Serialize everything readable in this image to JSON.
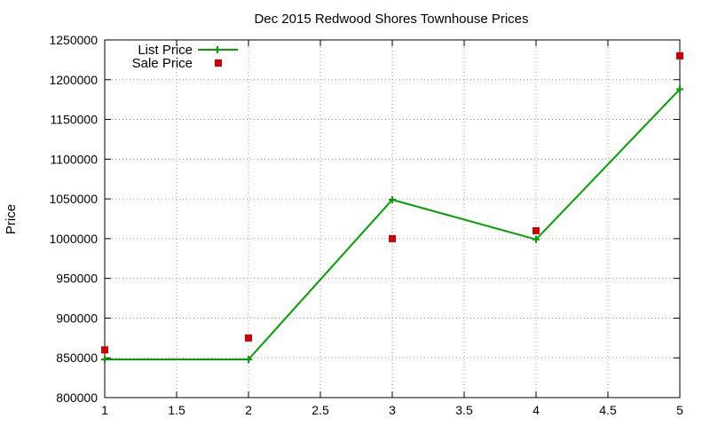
{
  "chart_data": {
    "type": "line",
    "title": "Dec 2015 Redwood Shores Townhouse Prices",
    "xlabel": "",
    "ylabel": "Price",
    "xlim": [
      1,
      5
    ],
    "ylim": [
      800000,
      1250000
    ],
    "x_ticks": [
      1,
      1.5,
      2,
      2.5,
      3,
      3.5,
      4,
      4.5,
      5
    ],
    "x_tick_labels": [
      "1",
      "1.5",
      "2",
      "2.5",
      "3",
      "3.5",
      "4",
      "4.5",
      "5"
    ],
    "y_ticks": [
      800000,
      850000,
      900000,
      950000,
      1000000,
      1050000,
      1100000,
      1150000,
      1200000,
      1250000
    ],
    "y_tick_labels": [
      "800000",
      "850000",
      "900000",
      "950000",
      "1000000",
      "1050000",
      "1100000",
      "1150000",
      "1200000",
      "1250000"
    ],
    "grid": true,
    "legend_position": "top-left",
    "series": [
      {
        "name": "List Price",
        "style": "line-with-plus-markers",
        "color": "#00a000",
        "x": [
          1,
          2,
          3,
          4,
          5
        ],
        "values": [
          848000,
          848000,
          1049000,
          999000,
          1188000
        ]
      },
      {
        "name": "Sale Price",
        "style": "square-markers",
        "color": "#cc0000",
        "x": [
          1,
          2,
          3,
          4,
          5
        ],
        "values": [
          860000,
          875000,
          1000000,
          1010000,
          1230000
        ]
      }
    ]
  }
}
